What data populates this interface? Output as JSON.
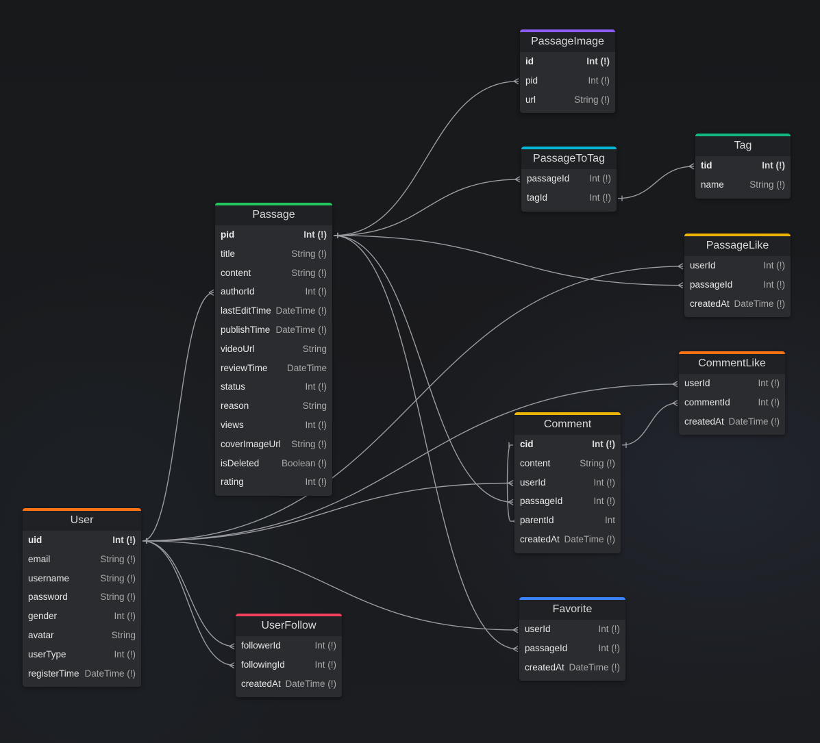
{
  "tables": [
    {
      "name": "PassageImage",
      "color": "#8b5cf6",
      "fields": [
        [
          "id",
          "Int (!)",
          true
        ],
        [
          "pid",
          "Int (!)",
          false
        ],
        [
          "url",
          "String (!)",
          false
        ]
      ]
    },
    {
      "name": "PassageToTag",
      "color": "#06b6d4",
      "fields": [
        [
          "passageId",
          "Int (!)",
          false
        ],
        [
          "tagId",
          "Int (!)",
          false
        ]
      ]
    },
    {
      "name": "Tag",
      "color": "#10b981",
      "fields": [
        [
          "tid",
          "Int (!)",
          true
        ],
        [
          "name",
          "String (!)",
          false
        ]
      ]
    },
    {
      "name": "Passage",
      "color": "#22c55e",
      "fields": [
        [
          "pid",
          "Int (!)",
          true
        ],
        [
          "title",
          "String (!)",
          false
        ],
        [
          "content",
          "String (!)",
          false
        ],
        [
          "authorId",
          "Int (!)",
          false
        ],
        [
          "lastEditTime",
          "DateTime (!)",
          false
        ],
        [
          "publishTime",
          "DateTime (!)",
          false
        ],
        [
          "videoUrl",
          "String",
          false
        ],
        [
          "reviewTime",
          "DateTime",
          false
        ],
        [
          "status",
          "Int (!)",
          false
        ],
        [
          "reason",
          "String",
          false
        ],
        [
          "views",
          "Int (!)",
          false
        ],
        [
          "coverImageUrl",
          "String (!)",
          false
        ],
        [
          "isDeleted",
          "Boolean (!)",
          false
        ],
        [
          "rating",
          "Int (!)",
          false
        ]
      ]
    },
    {
      "name": "PassageLike",
      "color": "#eab308",
      "fields": [
        [
          "userId",
          "Int (!)",
          false
        ],
        [
          "passageId",
          "Int (!)",
          false
        ],
        [
          "createdAt",
          "DateTime (!)",
          false
        ]
      ]
    },
    {
      "name": "CommentLike",
      "color": "#f97316",
      "fields": [
        [
          "userId",
          "Int (!)",
          false
        ],
        [
          "commentId",
          "Int (!)",
          false
        ],
        [
          "createdAt",
          "DateTime (!)",
          false
        ]
      ]
    },
    {
      "name": "Comment",
      "color": "#eab308",
      "fields": [
        [
          "cid",
          "Int (!)",
          true
        ],
        [
          "content",
          "String (!)",
          false
        ],
        [
          "userId",
          "Int (!)",
          false
        ],
        [
          "passageId",
          "Int (!)",
          false
        ],
        [
          "parentId",
          "Int",
          false
        ],
        [
          "createdAt",
          "DateTime (!)",
          false
        ]
      ]
    },
    {
      "name": "User",
      "color": "#f97316",
      "fields": [
        [
          "uid",
          "Int (!)",
          true
        ],
        [
          "email",
          "String (!)",
          false
        ],
        [
          "username",
          "String (!)",
          false
        ],
        [
          "password",
          "String (!)",
          false
        ],
        [
          "gender",
          "Int (!)",
          false
        ],
        [
          "avatar",
          "String",
          false
        ],
        [
          "userType",
          "Int (!)",
          false
        ],
        [
          "registerTime",
          "DateTime (!)",
          false
        ]
      ]
    },
    {
      "name": "UserFollow",
      "color": "#f43f5e",
      "fields": [
        [
          "followerId",
          "Int (!)",
          false
        ],
        [
          "followingId",
          "Int (!)",
          false
        ],
        [
          "createdAt",
          "DateTime (!)",
          false
        ]
      ]
    },
    {
      "name": "Favorite",
      "color": "#3b82f6",
      "fields": [
        [
          "userId",
          "Int (!)",
          false
        ],
        [
          "passageId",
          "Int (!)",
          false
        ],
        [
          "createdAt",
          "DateTime (!)",
          false
        ]
      ]
    }
  ],
  "relations": [
    [
      "Passage.pid",
      "PassageImage.pid"
    ],
    [
      "Passage.pid",
      "PassageToTag.passageId"
    ],
    [
      "PassageToTag.tagId",
      "Tag.tid"
    ],
    [
      "Passage.pid",
      "PassageLike.passageId"
    ],
    [
      "Passage.pid",
      "Comment.passageId"
    ],
    [
      "Passage.pid",
      "Favorite.passageId"
    ],
    [
      "User.uid",
      "Passage.authorId"
    ],
    [
      "User.uid",
      "PassageLike.userId"
    ],
    [
      "User.uid",
      "CommentLike.userId"
    ],
    [
      "User.uid",
      "Comment.userId"
    ],
    [
      "User.uid",
      "Favorite.userId"
    ],
    [
      "User.uid",
      "UserFollow.followerId"
    ],
    [
      "User.uid",
      "UserFollow.followingId"
    ],
    [
      "Comment.cid",
      "CommentLike.commentId"
    ],
    [
      "Comment.cid",
      "Comment.parentId"
    ]
  ],
  "edge_color": "#9a9ca2"
}
